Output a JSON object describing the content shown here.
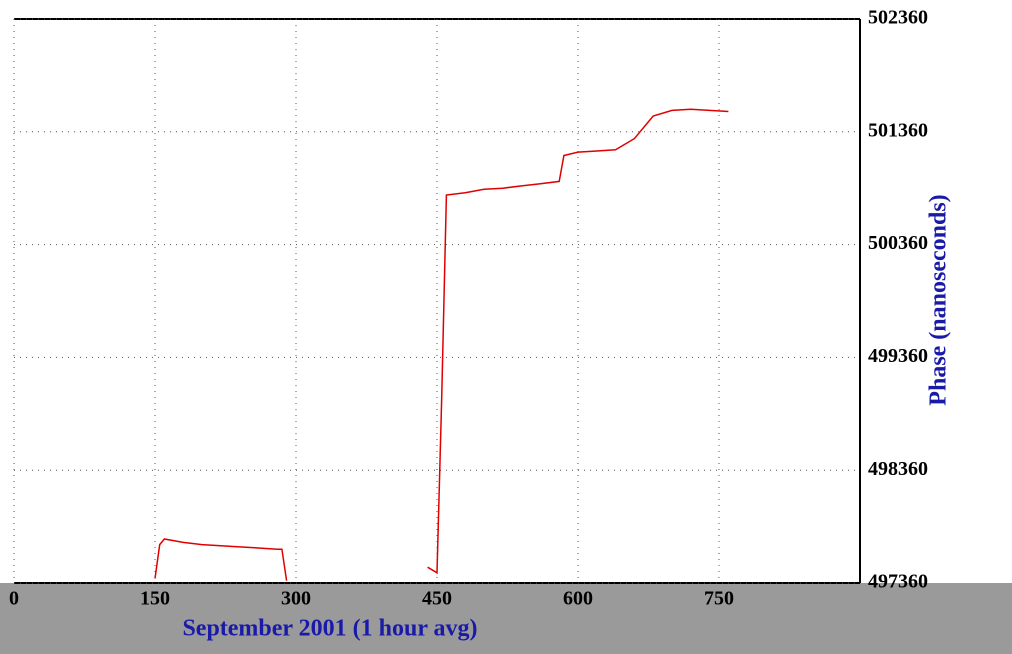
{
  "chart_data": {
    "type": "line",
    "x_label": "September 2001 (1 hour avg)",
    "y_label": "Phase (nanoseconds)",
    "x": [
      150,
      155,
      160,
      180,
      200,
      220,
      240,
      260,
      280,
      285,
      290,
      365,
      440,
      450,
      455,
      460,
      480,
      500,
      520,
      540,
      560,
      580,
      585,
      600,
      620,
      640,
      660,
      680,
      700,
      720,
      740,
      760
    ],
    "series": [
      {
        "name": "Phase",
        "color": "#e00000",
        "values": [
          497400,
          497700,
          497750,
          497720,
          497700,
          497690,
          497680,
          497670,
          497660,
          497660,
          497380,
          null,
          497500,
          497450,
          499000,
          500800,
          500820,
          500850,
          500860,
          500880,
          500900,
          500920,
          501150,
          501180,
          501190,
          501200,
          501300,
          501500,
          501550,
          501560,
          501550,
          501540
        ]
      }
    ],
    "xlim": [
      0,
      900
    ],
    "xticks": [
      0,
      150,
      300,
      450,
      600,
      750
    ],
    "ylim": [
      497360,
      502360
    ],
    "yticks": [
      497360,
      498360,
      499360,
      500360,
      501360,
      502360
    ],
    "grid": true
  }
}
